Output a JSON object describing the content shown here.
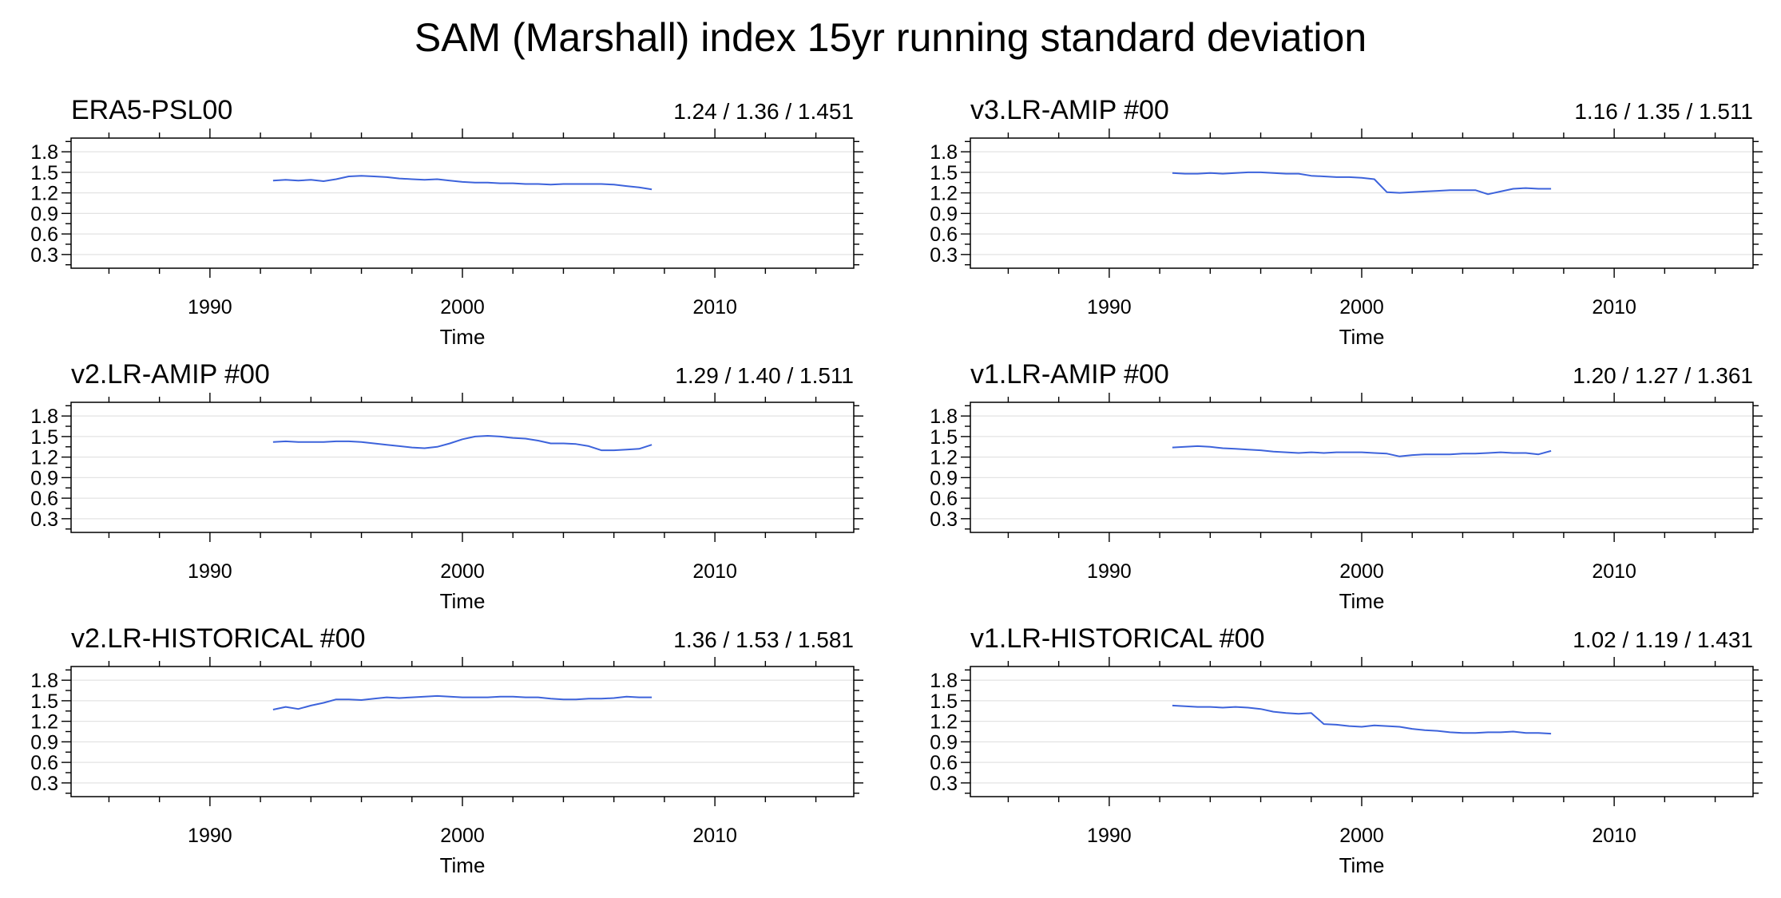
{
  "figure": {
    "title": "SAM (Marshall) index 15yr running standard deviation"
  },
  "colors": {
    "series": "#3d63db",
    "frame": "#000000",
    "grid": "#e3e3e3"
  },
  "chart_data": [
    {
      "type": "line",
      "title": "ERA5-PSL00",
      "stats": "1.24 / 1.36 / 1.451",
      "xlabel": "Time",
      "ylabel": "",
      "xlim": [
        1984.5,
        2015.5
      ],
      "ylim": [
        0.1,
        2.0
      ],
      "xticks": [
        1990,
        2000,
        2010
      ],
      "yticks": [
        0.3,
        0.6,
        0.9,
        1.2,
        1.5,
        1.8
      ],
      "grid": true,
      "series": [
        {
          "x": [
            1992.5,
            1993.0,
            1993.5,
            1994.0,
            1994.5,
            1995.0,
            1995.5,
            1996.0,
            1996.5,
            1997.0,
            1997.5,
            1998.0,
            1998.5,
            1999.0,
            1999.5,
            2000.0,
            2000.5,
            2001.0,
            2001.5,
            2002.0,
            2002.5,
            2003.0,
            2003.5,
            2004.0,
            2004.5,
            2005.0,
            2005.5,
            2006.0,
            2006.5,
            2007.0,
            2007.5
          ],
          "y": [
            1.38,
            1.39,
            1.38,
            1.39,
            1.37,
            1.4,
            1.44,
            1.45,
            1.44,
            1.43,
            1.41,
            1.4,
            1.39,
            1.4,
            1.38,
            1.36,
            1.35,
            1.35,
            1.34,
            1.34,
            1.33,
            1.33,
            1.32,
            1.33,
            1.33,
            1.33,
            1.33,
            1.32,
            1.3,
            1.28,
            1.25
          ]
        }
      ]
    },
    {
      "type": "line",
      "title": "v3.LR-AMIP  #00",
      "stats": "1.16 / 1.35 / 1.511",
      "xlabel": "Time",
      "ylabel": "",
      "xlim": [
        1984.5,
        2015.5
      ],
      "ylim": [
        0.1,
        2.0
      ],
      "xticks": [
        1990,
        2000,
        2010
      ],
      "yticks": [
        0.3,
        0.6,
        0.9,
        1.2,
        1.5,
        1.8
      ],
      "grid": true,
      "series": [
        {
          "x": [
            1992.5,
            1993.0,
            1993.5,
            1994.0,
            1994.5,
            1995.0,
            1995.5,
            1996.0,
            1996.5,
            1997.0,
            1997.5,
            1998.0,
            1998.5,
            1999.0,
            1999.5,
            2000.0,
            2000.5,
            2001.0,
            2001.5,
            2002.0,
            2002.5,
            2003.0,
            2003.5,
            2004.0,
            2004.5,
            2005.0,
            2005.5,
            2006.0,
            2006.5,
            2007.0,
            2007.5
          ],
          "y": [
            1.49,
            1.48,
            1.48,
            1.49,
            1.48,
            1.49,
            1.5,
            1.5,
            1.49,
            1.48,
            1.48,
            1.45,
            1.44,
            1.43,
            1.43,
            1.42,
            1.4,
            1.21,
            1.2,
            1.21,
            1.22,
            1.23,
            1.24,
            1.24,
            1.24,
            1.18,
            1.22,
            1.26,
            1.27,
            1.26,
            1.26
          ]
        }
      ]
    },
    {
      "type": "line",
      "title": "v2.LR-AMIP  #00",
      "stats": "1.29 / 1.40 / 1.511",
      "xlabel": "Time",
      "ylabel": "",
      "xlim": [
        1984.5,
        2015.5
      ],
      "ylim": [
        0.1,
        2.0
      ],
      "xticks": [
        1990,
        2000,
        2010
      ],
      "yticks": [
        0.3,
        0.6,
        0.9,
        1.2,
        1.5,
        1.8
      ],
      "grid": true,
      "series": [
        {
          "x": [
            1992.5,
            1993.0,
            1993.5,
            1994.0,
            1994.5,
            1995.0,
            1995.5,
            1996.0,
            1996.5,
            1997.0,
            1997.5,
            1998.0,
            1998.5,
            1999.0,
            1999.5,
            2000.0,
            2000.5,
            2001.0,
            2001.5,
            2002.0,
            2002.5,
            2003.0,
            2003.5,
            2004.0,
            2004.5,
            2005.0,
            2005.5,
            2006.0,
            2006.5,
            2007.0,
            2007.5
          ],
          "y": [
            1.42,
            1.43,
            1.42,
            1.42,
            1.42,
            1.43,
            1.43,
            1.42,
            1.4,
            1.38,
            1.36,
            1.34,
            1.33,
            1.35,
            1.4,
            1.46,
            1.5,
            1.51,
            1.5,
            1.48,
            1.47,
            1.44,
            1.4,
            1.4,
            1.39,
            1.36,
            1.3,
            1.3,
            1.31,
            1.32,
            1.38
          ]
        }
      ]
    },
    {
      "type": "line",
      "title": "v1.LR-AMIP  #00",
      "stats": "1.20 / 1.27 / 1.361",
      "xlabel": "Time",
      "ylabel": "",
      "xlim": [
        1984.5,
        2015.5
      ],
      "ylim": [
        0.1,
        2.0
      ],
      "xticks": [
        1990,
        2000,
        2010
      ],
      "yticks": [
        0.3,
        0.6,
        0.9,
        1.2,
        1.5,
        1.8
      ],
      "grid": true,
      "series": [
        {
          "x": [
            1992.5,
            1993.0,
            1993.5,
            1994.0,
            1994.5,
            1995.0,
            1995.5,
            1996.0,
            1996.5,
            1997.0,
            1997.5,
            1998.0,
            1998.5,
            1999.0,
            1999.5,
            2000.0,
            2000.5,
            2001.0,
            2001.5,
            2002.0,
            2002.5,
            2003.0,
            2003.5,
            2004.0,
            2004.5,
            2005.0,
            2005.5,
            2006.0,
            2006.5,
            2007.0,
            2007.5
          ],
          "y": [
            1.34,
            1.35,
            1.36,
            1.35,
            1.33,
            1.32,
            1.31,
            1.3,
            1.28,
            1.27,
            1.26,
            1.27,
            1.26,
            1.27,
            1.27,
            1.27,
            1.26,
            1.25,
            1.21,
            1.23,
            1.24,
            1.24,
            1.24,
            1.25,
            1.25,
            1.26,
            1.27,
            1.26,
            1.26,
            1.24,
            1.29
          ]
        }
      ]
    },
    {
      "type": "line",
      "title": "v2.LR-HISTORICAL  #00",
      "stats": "1.36 / 1.53 / 1.581",
      "xlabel": "Time",
      "ylabel": "",
      "xlim": [
        1984.5,
        2015.5
      ],
      "ylim": [
        0.1,
        2.0
      ],
      "xticks": [
        1990,
        2000,
        2010
      ],
      "yticks": [
        0.3,
        0.6,
        0.9,
        1.2,
        1.5,
        1.8
      ],
      "grid": true,
      "series": [
        {
          "x": [
            1992.5,
            1993.0,
            1993.5,
            1994.0,
            1994.5,
            1995.0,
            1995.5,
            1996.0,
            1996.5,
            1997.0,
            1997.5,
            1998.0,
            1998.5,
            1999.0,
            1999.5,
            2000.0,
            2000.5,
            2001.0,
            2001.5,
            2002.0,
            2002.5,
            2003.0,
            2003.5,
            2004.0,
            2004.5,
            2005.0,
            2005.5,
            2006.0,
            2006.5,
            2007.0,
            2007.5
          ],
          "y": [
            1.37,
            1.41,
            1.38,
            1.43,
            1.47,
            1.52,
            1.52,
            1.51,
            1.53,
            1.55,
            1.54,
            1.55,
            1.56,
            1.57,
            1.56,
            1.55,
            1.55,
            1.55,
            1.56,
            1.56,
            1.55,
            1.55,
            1.53,
            1.52,
            1.52,
            1.53,
            1.53,
            1.54,
            1.56,
            1.55,
            1.55
          ]
        }
      ]
    },
    {
      "type": "line",
      "title": "v1.LR-HISTORICAL  #00",
      "stats": "1.02 / 1.19 / 1.431",
      "xlabel": "Time",
      "ylabel": "",
      "xlim": [
        1984.5,
        2015.5
      ],
      "ylim": [
        0.1,
        2.0
      ],
      "xticks": [
        1990,
        2000,
        2010
      ],
      "yticks": [
        0.3,
        0.6,
        0.9,
        1.2,
        1.5,
        1.8
      ],
      "grid": true,
      "series": [
        {
          "x": [
            1992.5,
            1993.0,
            1993.5,
            1994.0,
            1994.5,
            1995.0,
            1995.5,
            1996.0,
            1996.5,
            1997.0,
            1997.5,
            1998.0,
            1998.5,
            1999.0,
            1999.5,
            2000.0,
            2000.5,
            2001.0,
            2001.5,
            2002.0,
            2002.5,
            2003.0,
            2003.5,
            2004.0,
            2004.5,
            2005.0,
            2005.5,
            2006.0,
            2006.5,
            2007.0,
            2007.5
          ],
          "y": [
            1.43,
            1.42,
            1.41,
            1.41,
            1.4,
            1.41,
            1.4,
            1.38,
            1.34,
            1.32,
            1.31,
            1.32,
            1.16,
            1.15,
            1.13,
            1.12,
            1.14,
            1.13,
            1.12,
            1.09,
            1.07,
            1.06,
            1.04,
            1.03,
            1.03,
            1.04,
            1.04,
            1.05,
            1.03,
            1.03,
            1.02
          ]
        }
      ]
    }
  ]
}
